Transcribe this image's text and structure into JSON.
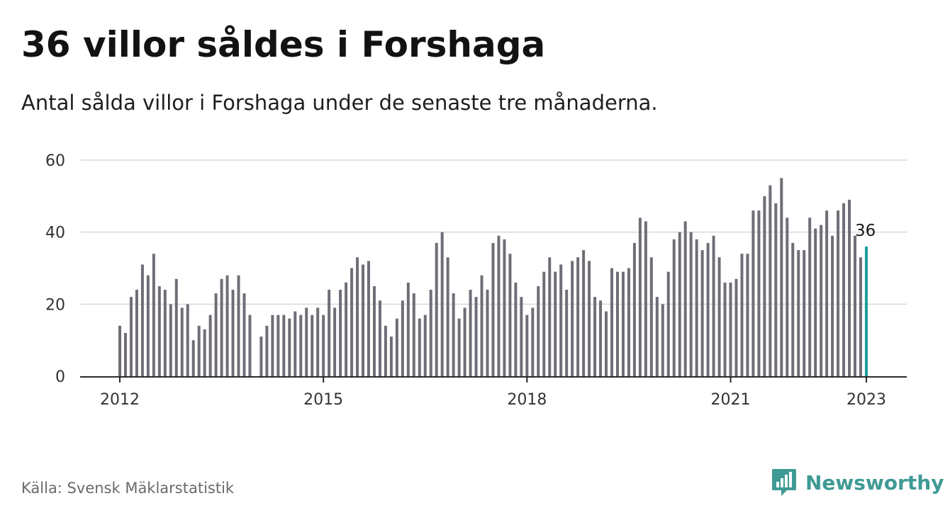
{
  "title": "36 villor såldes i Forshaga",
  "subtitle": "Antal sålda villor i Forshaga under de senaste tre månaderna.",
  "source": "Källa: Svensk Mäklarstatistik",
  "brand": {
    "name": "Newsworthy",
    "icon": "newsworthy-logo-icon",
    "color": "#3f9a94"
  },
  "colors": {
    "bar": "#6e6e76",
    "highlight": "#1a9e98",
    "grid": "#d9d9d9",
    "axis": "#333333"
  },
  "chart_data": {
    "type": "bar",
    "title": "36 villor såldes i Forshaga",
    "xlabel": "",
    "ylabel": "",
    "ylim": [
      0,
      60
    ],
    "yticks": [
      "0",
      "20",
      "40",
      "60"
    ],
    "xticks": [
      {
        "label": "2012",
        "value": 2012.0
      },
      {
        "label": "2015",
        "value": 2015.0
      },
      {
        "label": "2018",
        "value": 2018.0
      },
      {
        "label": "2021",
        "value": 2021.0
      },
      {
        "label": "2023",
        "value": 2023.0
      }
    ],
    "grid": true,
    "x_start": 2012.0,
    "x_step": 0.08333,
    "values": [
      14,
      12,
      22,
      24,
      31,
      28,
      34,
      25,
      24,
      20,
      27,
      19,
      20,
      10,
      14,
      13,
      17,
      23,
      27,
      28,
      24,
      28,
      23,
      17,
      null,
      11,
      14,
      17,
      17,
      17,
      16,
      18,
      17,
      19,
      17,
      19,
      17,
      24,
      19,
      24,
      26,
      30,
      33,
      31,
      32,
      25,
      21,
      14,
      11,
      16,
      21,
      26,
      23,
      16,
      17,
      24,
      37,
      40,
      33,
      23,
      16,
      19,
      24,
      22,
      28,
      24,
      37,
      39,
      38,
      34,
      26,
      22,
      17,
      19,
      25,
      29,
      33,
      29,
      31,
      24,
      32,
      33,
      35,
      32,
      22,
      21,
      18,
      30,
      29,
      29,
      30,
      37,
      44,
      43,
      33,
      22,
      20,
      29,
      38,
      40,
      43,
      40,
      38,
      35,
      37,
      39,
      33,
      26,
      26,
      27,
      34,
      34,
      46,
      46,
      50,
      53,
      48,
      55,
      44,
      37,
      35,
      35,
      44,
      41,
      42,
      46,
      39,
      46,
      48,
      49,
      39,
      33,
      36
    ],
    "highlight_last": true,
    "annotation": "36"
  }
}
